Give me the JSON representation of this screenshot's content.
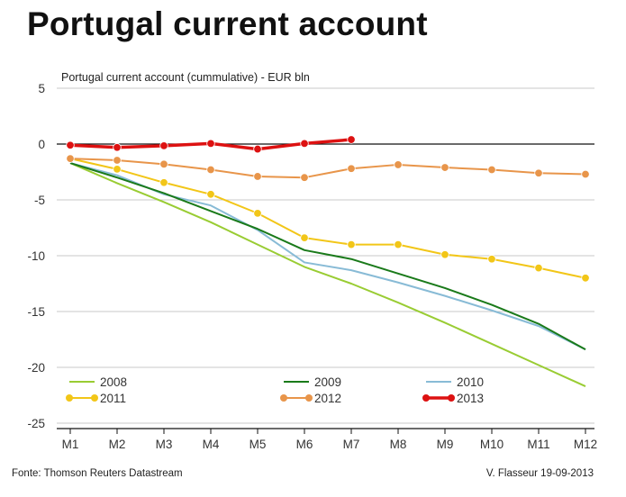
{
  "title": "Portugal current account",
  "footer": {
    "source": "Fonte: Thomson Reuters Datastream",
    "author": "V. Flasseur 19-09-2013"
  },
  "chart_data": {
    "type": "line",
    "title": "Portugal current account (cummulative) - EUR bln",
    "xlabel": "",
    "ylabel": "",
    "x": [
      "M1",
      "M2",
      "M3",
      "M4",
      "M5",
      "M6",
      "M7",
      "M8",
      "M9",
      "M10",
      "M11",
      "M12"
    ],
    "ylim": [
      -25,
      5
    ],
    "yticks": [
      5,
      0,
      -5,
      -10,
      -15,
      -20,
      -25
    ],
    "grid": true,
    "legend_position": "bottom",
    "series": [
      {
        "name": "2008",
        "color": "#99cc33",
        "markers": false,
        "values": [
          -1.7,
          -3.5,
          -5.2,
          -7.0,
          -9.0,
          -11.0,
          -12.5,
          -14.2,
          -16.0,
          -17.9,
          -19.8,
          -21.7
        ]
      },
      {
        "name": "2009",
        "color": "#1a7a1a",
        "markers": false,
        "values": [
          -1.7,
          -3.0,
          -4.4,
          -6.0,
          -7.6,
          -9.5,
          -10.3,
          -11.6,
          -12.9,
          -14.4,
          -16.1,
          -18.4
        ]
      },
      {
        "name": "2010",
        "color": "#88bbd6",
        "markers": false,
        "values": [
          -1.7,
          -2.8,
          -4.5,
          -5.5,
          -7.7,
          -10.6,
          -11.3,
          -12.4,
          -13.6,
          -14.9,
          -16.3,
          -18.4
        ]
      },
      {
        "name": "2011",
        "color": "#f2c618",
        "markers": true,
        "values": [
          -1.3,
          -2.25,
          -3.45,
          -4.5,
          -6.2,
          -8.4,
          -9.0,
          -9.0,
          -9.9,
          -10.3,
          -11.1,
          -12.0
        ]
      },
      {
        "name": "2012",
        "color": "#e8954a",
        "markers": true,
        "values": [
          -1.3,
          -1.45,
          -1.8,
          -2.3,
          -2.9,
          -3.0,
          -2.2,
          -1.85,
          -2.1,
          -2.3,
          -2.6,
          -2.7
        ]
      },
      {
        "name": "2013",
        "color": "#dd1111",
        "markers": true,
        "values": [
          -0.1,
          -0.3,
          -0.15,
          0.05,
          -0.45,
          0.05,
          0.4,
          null,
          null,
          null,
          null,
          null
        ]
      }
    ]
  }
}
